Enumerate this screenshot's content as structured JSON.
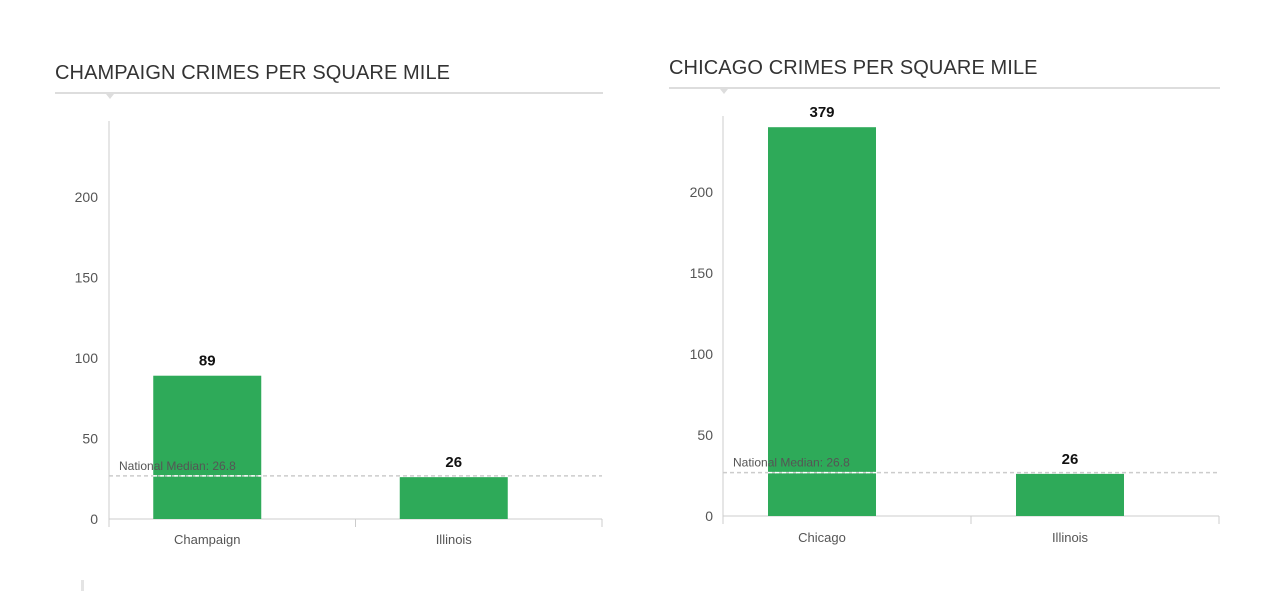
{
  "chart_data": [
    {
      "type": "bar",
      "title": "CHAMPAIGN CRIMES PER SQUARE MILE",
      "categories": [
        "Champaign",
        "Illinois"
      ],
      "values": [
        89,
        26
      ],
      "value_labels": [
        "89",
        "26"
      ],
      "ylim": [
        0,
        240
      ],
      "yticks": [
        0,
        50,
        100,
        150,
        200
      ],
      "reference_line": {
        "label": "National Median: 26.8",
        "value": 26.8
      },
      "xlabel": "",
      "ylabel": "",
      "grid": false
    },
    {
      "type": "bar",
      "title": "CHICAGO CRIMES PER SQUARE MILE",
      "categories": [
        "Chicago",
        "Illinois"
      ],
      "values": [
        379,
        26
      ],
      "value_labels": [
        "379",
        "26"
      ],
      "ylim": [
        0,
        250
      ],
      "yticks": [
        0,
        50,
        100,
        150,
        200
      ],
      "reference_line": {
        "label": "National Median: 26.8",
        "value": 26.8
      },
      "xlabel": "",
      "ylabel": "",
      "grid": false
    }
  ],
  "colors": {
    "bar": "#2eaa59",
    "axis": "#cccccc",
    "median_line": "#cccccc",
    "tick_label": "#555555",
    "value_label": "#111111",
    "title": "#333333"
  }
}
